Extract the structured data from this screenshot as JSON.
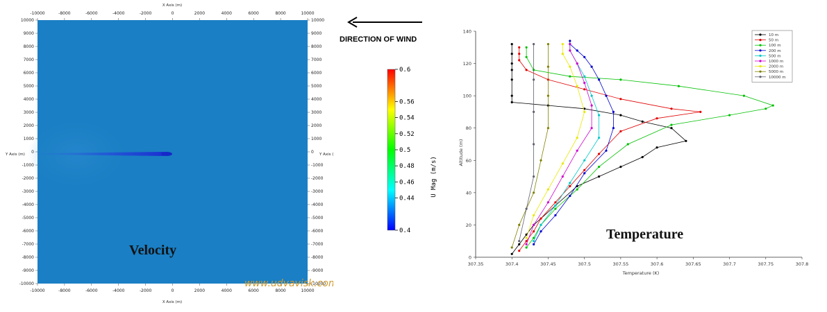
{
  "velocity_plot": {
    "x_axis_label": "X Axis (m)",
    "y_axis_label": "Y Axis (m)",
    "x_ticks": [
      "-10000",
      "-8000",
      "-6000",
      "-4000",
      "-2000",
      "0",
      "2000",
      "4000",
      "6000",
      "8000",
      "10000"
    ],
    "y_ticks": [
      "10000",
      "9000",
      "8000",
      "7000",
      "6000",
      "5000",
      "4000",
      "3000",
      "2000",
      "1000",
      "0",
      "-1000",
      "-2000",
      "-3000",
      "-4000",
      "-5000",
      "-6000",
      "-7000",
      "-8000",
      "-9000",
      "-10000"
    ],
    "field_color": "#1a7fc4",
    "wake_color": "#1f3fd8",
    "heading": "Velocity"
  },
  "wind_indicator": {
    "arrow": "←",
    "label": "DIRECTION OF WIND"
  },
  "colorbar": {
    "title": "U Mag (m/s)",
    "ticks": [
      "0.6",
      "0.56",
      "0.54",
      "0.52",
      "0.5",
      "0.48",
      "0.46",
      "0.44",
      "0.4"
    ],
    "colors": [
      "#ff0000",
      "#ffff00",
      "#00ff00",
      "#00ffff",
      "#0000ff"
    ]
  },
  "watermark": "www.udvavisk.com",
  "chart_data": {
    "type": "line",
    "xlabel": "Temperature (K)",
    "ylabel": "Altitude (m)",
    "xlim": [
      307.35,
      307.8
    ],
    "ylim": [
      0,
      140
    ],
    "x_ticks": [
      "307.35",
      "307.4",
      "307.45",
      "307.5",
      "307.55",
      "307.6",
      "307.65",
      "307.7",
      "307.75",
      "307.8"
    ],
    "y_ticks": [
      "0",
      "20",
      "40",
      "60",
      "80",
      "100",
      "120",
      "140"
    ],
    "legend_position": "top-right",
    "grid": false,
    "heading": "Temperature",
    "series": [
      {
        "name": "10 m",
        "color": "#000000",
        "x": [
          307.4,
          307.41,
          307.42,
          307.43,
          307.46,
          307.49,
          307.52,
          307.55,
          307.58,
          307.6,
          307.64,
          307.62,
          307.58,
          307.55,
          307.5,
          307.45,
          307.4,
          307.4,
          307.4,
          307.4,
          307.4,
          307.4,
          307.4
        ],
        "y": [
          2,
          8,
          14,
          20,
          32,
          44,
          50,
          56,
          62,
          68,
          72,
          80,
          84,
          88,
          92,
          94,
          96,
          100,
          110,
          116,
          120,
          126,
          132
        ]
      },
      {
        "name": "50 m",
        "color": "#e00000",
        "x": [
          307.41,
          307.42,
          307.43,
          307.44,
          307.46,
          307.48,
          307.5,
          307.52,
          307.55,
          307.6,
          307.66,
          307.62,
          307.55,
          307.5,
          307.45,
          307.42,
          307.41,
          307.41,
          307.41
        ],
        "y": [
          4,
          10,
          16,
          24,
          34,
          44,
          54,
          64,
          78,
          86,
          90,
          92,
          98,
          104,
          110,
          116,
          122,
          126,
          130
        ]
      },
      {
        "name": "100 m",
        "color": "#00c000",
        "x": [
          307.42,
          307.43,
          307.44,
          307.46,
          307.49,
          307.52,
          307.56,
          307.62,
          307.7,
          307.75,
          307.76,
          307.72,
          307.63,
          307.55,
          307.48,
          307.43,
          307.42,
          307.42
        ],
        "y": [
          6,
          12,
          20,
          30,
          42,
          56,
          70,
          82,
          88,
          92,
          94,
          100,
          106,
          110,
          112,
          116,
          124,
          130
        ]
      },
      {
        "name": "200 m",
        "color": "#0000d0",
        "x": [
          307.43,
          307.44,
          307.46,
          307.48,
          307.5,
          307.53,
          307.54,
          307.54,
          307.53,
          307.52,
          307.51,
          307.5,
          307.49,
          307.48,
          307.48
        ],
        "y": [
          8,
          16,
          26,
          38,
          52,
          66,
          80,
          90,
          100,
          110,
          118,
          124,
          128,
          132,
          134
        ]
      },
      {
        "name": "500 m",
        "color": "#00c8c8",
        "x": [
          307.43,
          307.44,
          307.46,
          307.48,
          307.5,
          307.52,
          307.52,
          307.51,
          307.5,
          307.49,
          307.48,
          307.48
        ],
        "y": [
          10,
          20,
          32,
          46,
          60,
          74,
          88,
          100,
          112,
          120,
          128,
          132
        ]
      },
      {
        "name": "1000 m",
        "color": "#d000d0",
        "x": [
          307.42,
          307.43,
          307.45,
          307.47,
          307.49,
          307.51,
          307.51,
          307.5,
          307.49,
          307.48,
          307.48
        ],
        "y": [
          8,
          20,
          34,
          50,
          66,
          80,
          94,
          108,
          120,
          128,
          132
        ]
      },
      {
        "name": "2000 m",
        "color": "#e8e800",
        "x": [
          307.42,
          307.43,
          307.45,
          307.47,
          307.49,
          307.5,
          307.49,
          307.48,
          307.47,
          307.47
        ],
        "y": [
          12,
          26,
          42,
          58,
          74,
          90,
          106,
          118,
          126,
          132
        ]
      },
      {
        "name": "5000 m",
        "color": "#808000",
        "x": [
          307.4,
          307.41,
          307.43,
          307.44,
          307.45,
          307.45,
          307.45,
          307.45
        ],
        "y": [
          6,
          20,
          40,
          60,
          80,
          100,
          118,
          132
        ]
      },
      {
        "name": "10000 m",
        "color": "#606070",
        "x": [
          307.41,
          307.42,
          307.43,
          307.43,
          307.43,
          307.43,
          307.43
        ],
        "y": [
          10,
          30,
          50,
          70,
          90,
          110,
          132
        ]
      }
    ]
  }
}
